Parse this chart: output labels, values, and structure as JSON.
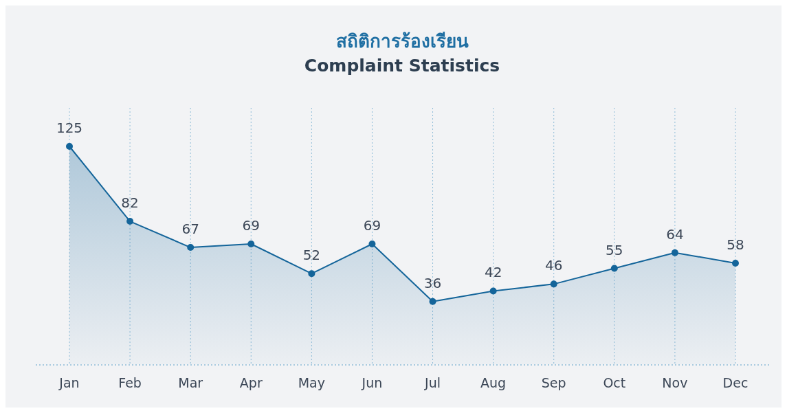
{
  "chart_data": {
    "type": "area",
    "title": "สถิติการร้องเรียน",
    "subtitle": "Complaint Statistics",
    "categories": [
      "Jan",
      "Feb",
      "Mar",
      "Apr",
      "May",
      "Jun",
      "Jul",
      "Aug",
      "Sep",
      "Oct",
      "Nov",
      "Dec"
    ],
    "series": [
      {
        "color": "#14659a",
        "values": [
          125,
          82,
          67,
          69,
          52,
          69,
          36,
          42,
          46,
          55,
          64,
          58
        ]
      }
    ],
    "data_labels": true,
    "grid": "x",
    "marker": "circle",
    "line_style": "solid",
    "tick_labels": "x"
  }
}
